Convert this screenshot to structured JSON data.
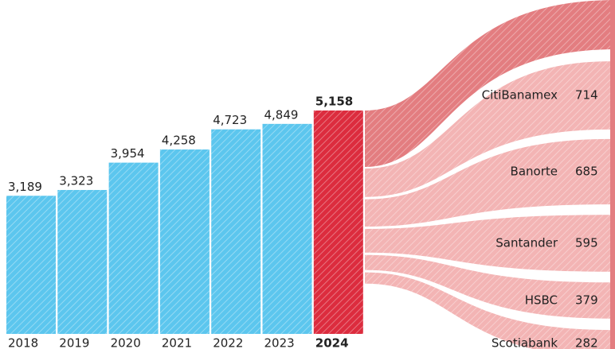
{
  "chart_data": [
    {
      "type": "bar",
      "categories": [
        "2018",
        "2019",
        "2020",
        "2021",
        "2022",
        "2023",
        "2024"
      ],
      "values": [
        3189,
        3323,
        3954,
        4258,
        4723,
        4849,
        5158
      ],
      "value_labels": [
        "3,189",
        "3,323",
        "3,954",
        "4,258",
        "4,723",
        "4,849",
        "5,158"
      ],
      "color": "#5cc6ee",
      "highlight_color": "#dc2c3e"
    },
    {
      "type": "sankey",
      "categories": [
        "CitiBanamex",
        "Banorte",
        "Santander",
        "HSBC",
        "Scotiabank"
      ],
      "values": [
        714,
        685,
        595,
        379,
        282
      ],
      "color": "#f3b4b4"
    }
  ]
}
